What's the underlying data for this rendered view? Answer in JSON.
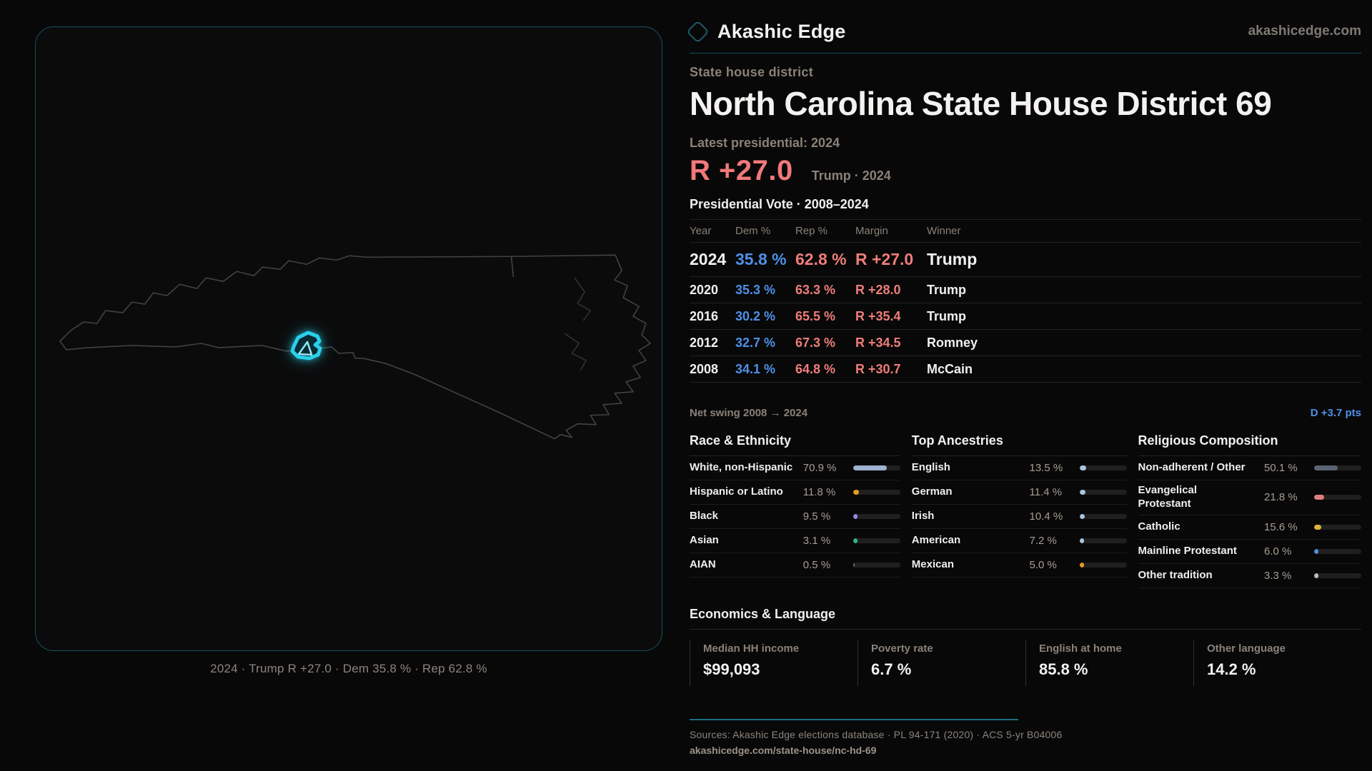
{
  "brand": {
    "name": "Akashic Edge",
    "site": "akashicedge.com"
  },
  "header": {
    "kicker": "State house district",
    "title": "North Carolina State House District 69",
    "latest_label": "Latest presidential: 2024",
    "headline_margin": "R +27.0",
    "headline_note": "Trump · 2024"
  },
  "map": {
    "caption": "2024 · Trump R +27.0 · Dem 35.8 % · Rep 62.8 %"
  },
  "vote_table": {
    "title": "Presidential Vote · 2008–2024",
    "columns": [
      "Year",
      "Dem %",
      "Rep %",
      "Margin",
      "Winner"
    ],
    "rows": [
      {
        "year": "2024",
        "dem": "35.8 %",
        "rep": "62.8 %",
        "margin": "R +27.0",
        "winner": "Trump",
        "emphasis": true
      },
      {
        "year": "2020",
        "dem": "35.3 %",
        "rep": "63.3 %",
        "margin": "R +28.0",
        "winner": "Trump",
        "emphasis": false
      },
      {
        "year": "2016",
        "dem": "30.2 %",
        "rep": "65.5 %",
        "margin": "R +35.4",
        "winner": "Trump",
        "emphasis": false
      },
      {
        "year": "2012",
        "dem": "32.7 %",
        "rep": "67.3 %",
        "margin": "R +34.5",
        "winner": "Romney",
        "emphasis": false
      },
      {
        "year": "2008",
        "dem": "34.1 %",
        "rep": "64.8 %",
        "margin": "R +30.7",
        "winner": "McCain",
        "emphasis": false
      }
    ],
    "net_swing_label": "Net swing 2008 → 2024",
    "net_swing_value": "D +3.7 pts"
  },
  "demographics": {
    "sections": [
      {
        "title": "Race & Ethnicity",
        "rows": [
          {
            "label": "White, non-Hispanic",
            "display": "70.9 %",
            "value": 70.9,
            "color": "#9fb3d2"
          },
          {
            "label": "Hispanic or Latino",
            "display": "11.8 %",
            "value": 11.8,
            "color": "#e59a22"
          },
          {
            "label": "Black",
            "display": "9.5 %",
            "value": 9.5,
            "color": "#9b87e8"
          },
          {
            "label": "Asian",
            "display": "3.1 %",
            "value": 3.1,
            "color": "#2bb586"
          },
          {
            "label": "AIAN",
            "display": "0.5 %",
            "value": 0.5,
            "color": "#6b6b6b"
          }
        ]
      },
      {
        "title": "Top Ancestries",
        "rows": [
          {
            "label": "English",
            "display": "13.5 %",
            "value": 13.5,
            "color": "#a9c4de"
          },
          {
            "label": "German",
            "display": "11.4 %",
            "value": 11.4,
            "color": "#a9c4de"
          },
          {
            "label": "Irish",
            "display": "10.4 %",
            "value": 10.4,
            "color": "#a9c4de"
          },
          {
            "label": "American",
            "display": "7.2 %",
            "value": 7.2,
            "color": "#a9c4de"
          },
          {
            "label": "Mexican",
            "display": "5.0 %",
            "value": 5.0,
            "color": "#e59a22"
          }
        ]
      },
      {
        "title": "Religious Composition",
        "rows": [
          {
            "label": "Non-adherent / Other",
            "display": "50.1 %",
            "value": 50.1,
            "color": "#5b6372"
          },
          {
            "label": "Evangelical Protestant",
            "display": "21.8 %",
            "value": 21.8,
            "color": "#df7d7d"
          },
          {
            "label": "Catholic",
            "display": "15.6 %",
            "value": 15.6,
            "color": "#ddb33c"
          },
          {
            "label": "Mainline Protestant",
            "display": "6.0 %",
            "value": 6.0,
            "color": "#4d8fe0"
          },
          {
            "label": "Other tradition",
            "display": "3.3 %",
            "value": 3.3,
            "color": "#b9bec6"
          }
        ]
      }
    ]
  },
  "economics": {
    "title": "Economics & Language",
    "stats": [
      {
        "label": "Median HH income",
        "value": "$99,093"
      },
      {
        "label": "Poverty rate",
        "value": "6.7 %"
      },
      {
        "label": "English at home",
        "value": "85.8 %"
      },
      {
        "label": "Other language",
        "value": "14.2 %"
      }
    ]
  },
  "footer": {
    "sources": "Sources: Akashic Edge elections database · PL 94-171 (2020) · ACS 5-yr B04006",
    "permalink": "akashicedge.com/state-house/nc-hd-69"
  },
  "colors": {
    "dem": "#4f90e8",
    "rep": "#ee7d7a",
    "accent_teal": "#2ad0ec",
    "swing_blue": "#4f90e8",
    "headline_red": "#f1797a"
  }
}
